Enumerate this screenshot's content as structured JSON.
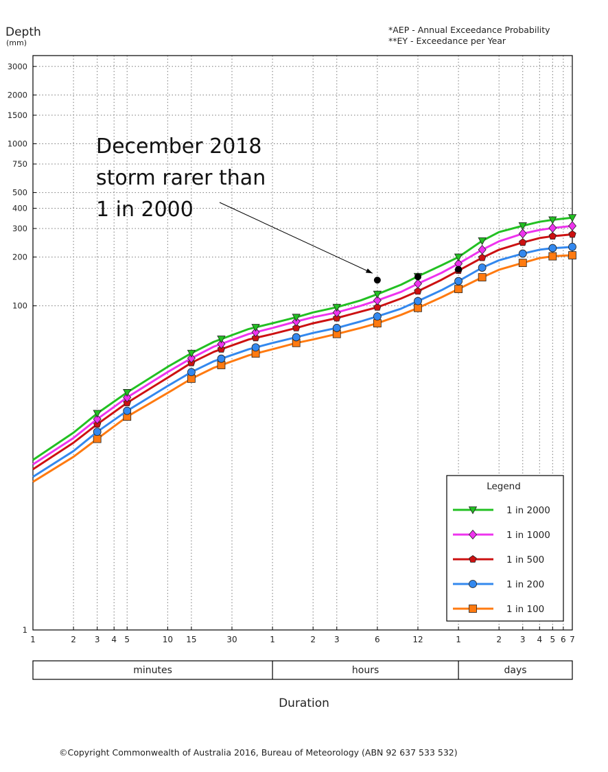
{
  "header": {
    "ylabel": "Depth",
    "yunit": "(mm)",
    "notes": [
      "*AEP - Annual Exceedance Probability",
      "**EY - Exceedance per Year"
    ]
  },
  "annotation": {
    "lines": [
      "December 2018",
      "storm rarer than",
      "1 in 2000"
    ]
  },
  "footer": {
    "xlabel": "Duration",
    "copyright": "©Copyright Commonwealth of Australia 2016, Bureau of Meteorology (ABN 92 637 533 532)"
  },
  "colors": {
    "1 in 2000": "#22c022",
    "1 in 1000": "#ee33ee",
    "1 in 500": "#cc1111",
    "1 in 200": "#3388ee",
    "1 in 100": "#ff7a10",
    "storm": "#000000"
  },
  "chart_data": {
    "type": "line",
    "title": "",
    "xlabel": "Duration",
    "ylabel": "Depth (mm)",
    "yscale": "log",
    "ylim": [
      1,
      3500
    ],
    "xscale": "log",
    "x_units": "minutes",
    "xlim": [
      1,
      10080
    ],
    "x_ticks": [
      {
        "x": 1,
        "label": "1"
      },
      {
        "x": 2,
        "label": "2"
      },
      {
        "x": 3,
        "label": "3"
      },
      {
        "x": 4,
        "label": "4"
      },
      {
        "x": 5,
        "label": "5"
      },
      {
        "x": 10,
        "label": "10"
      },
      {
        "x": 15,
        "label": "15"
      },
      {
        "x": 30,
        "label": "30"
      },
      {
        "x": 60,
        "label": "1"
      },
      {
        "x": 120,
        "label": "2"
      },
      {
        "x": 180,
        "label": "3"
      },
      {
        "x": 360,
        "label": "6"
      },
      {
        "x": 720,
        "label": "12"
      },
      {
        "x": 1440,
        "label": "1"
      },
      {
        "x": 2880,
        "label": "2"
      },
      {
        "x": 4320,
        "label": "3"
      },
      {
        "x": 5760,
        "label": "4"
      },
      {
        "x": 7200,
        "label": "5"
      },
      {
        "x": 8640,
        "label": "6"
      },
      {
        "x": 10080,
        "label": "7"
      }
    ],
    "y_ticks": [
      1,
      100,
      200,
      300,
      400,
      500,
      750,
      1000,
      1500,
      2000,
      3000
    ],
    "x_groups": [
      {
        "label": "minutes",
        "from": 1,
        "to": 60
      },
      {
        "label": "hours",
        "from": 60,
        "to": 1440
      },
      {
        "label": "days",
        "from": 1440,
        "to": 10080
      }
    ],
    "legend_title": "Legend",
    "legend_position": "bottom-right",
    "grid": true,
    "series": [
      {
        "name": "1 in 2000",
        "marker": "triangle-down",
        "x": [
          1,
          2,
          3,
          5,
          10,
          15,
          22,
          40,
          60,
          90,
          120,
          180,
          270,
          360,
          540,
          720,
          1080,
          1440,
          2160,
          2880,
          4320,
          5760,
          7200,
          8640,
          10080
        ],
        "values": [
          [
            11.2,
            null
          ],
          [
            16.5,
            null
          ],
          [
            21.7,
            null
          ],
          [
            29.2,
            null
          ],
          [
            42,
            null
          ],
          [
            51,
            null
          ],
          [
            60,
            null
          ],
          [
            72,
            null
          ],
          [
            78,
            null
          ],
          [
            85,
            null
          ],
          [
            91,
            null
          ],
          [
            98,
            null
          ],
          [
            108,
            null
          ],
          [
            118,
            null
          ],
          [
            135,
            null
          ],
          [
            152,
            null
          ],
          [
            178,
            null
          ],
          [
            200,
            null
          ],
          [
            252,
            null
          ],
          [
            285,
            null
          ],
          [
            312,
            null
          ],
          [
            330,
            null
          ],
          [
            339,
            null
          ],
          [
            345,
            null
          ],
          [
            350,
            null
          ]
        ]
      },
      {
        "name": "1 in 1000",
        "marker": "diamond",
        "x": [
          1,
          2,
          3,
          5,
          10,
          15,
          22,
          40,
          60,
          90,
          120,
          180,
          270,
          360,
          540,
          720,
          1080,
          1440,
          2160,
          2880,
          4320,
          5760,
          7200,
          8640,
          10080
        ],
        "values": [
          [
            10.5,
            null
          ],
          [
            15.3,
            null
          ],
          [
            20,
            null
          ],
          [
            27.2,
            null
          ],
          [
            39,
            null
          ],
          [
            47.5,
            null
          ],
          [
            56,
            null
          ],
          [
            67,
            null
          ],
          [
            73,
            null
          ],
          [
            80,
            null
          ],
          [
            85,
            null
          ],
          [
            91,
            null
          ],
          [
            100,
            null
          ],
          [
            108,
            null
          ],
          [
            122,
            null
          ],
          [
            137,
            null
          ],
          [
            160,
            null
          ],
          [
            182,
            null
          ],
          [
            222,
            null
          ],
          [
            250,
            null
          ],
          [
            279,
            null
          ],
          [
            294,
            null
          ],
          [
            302,
            null
          ],
          [
            307,
            null
          ],
          [
            311,
            null
          ]
        ]
      },
      {
        "name": "1 in 500",
        "marker": "pentagon",
        "x": [
          1,
          2,
          3,
          5,
          10,
          15,
          22,
          40,
          60,
          90,
          120,
          180,
          270,
          360,
          540,
          720,
          1080,
          1440,
          2160,
          2880,
          4320,
          5760,
          7200,
          8640,
          10080
        ],
        "values": [
          [
            9.8,
            null
          ],
          [
            14.3,
            null
          ],
          [
            18.6,
            null
          ],
          [
            25.2,
            null
          ],
          [
            36,
            null
          ],
          [
            44.5,
            null
          ],
          [
            52,
            null
          ],
          [
            62,
            null
          ],
          [
            67,
            null
          ],
          [
            73,
            null
          ],
          [
            78,
            null
          ],
          [
            84,
            null
          ],
          [
            92,
            null
          ],
          [
            98,
            null
          ],
          [
            111,
            null
          ],
          [
            123,
            null
          ],
          [
            145,
            null
          ],
          [
            165,
            null
          ],
          [
            198,
            null
          ],
          [
            222,
            null
          ],
          [
            246,
            null
          ],
          [
            262,
            null
          ],
          [
            269,
            null
          ],
          [
            273,
            null
          ],
          [
            276,
            null
          ]
        ]
      },
      {
        "name": "1 in 200",
        "marker": "circle",
        "x": [
          1,
          2,
          3,
          5,
          10,
          15,
          22,
          40,
          60,
          90,
          120,
          180,
          270,
          360,
          540,
          720,
          1080,
          1440,
          2160,
          2880,
          4320,
          5760,
          7200,
          8640,
          10080
        ],
        "values": [
          [
            8.8,
            null
          ],
          [
            12.7,
            null
          ],
          [
            16.7,
            null
          ],
          [
            22.5,
            null
          ],
          [
            32,
            null
          ],
          [
            39,
            null
          ],
          [
            45.5,
            null
          ],
          [
            54,
            null
          ],
          [
            59,
            null
          ],
          [
            64,
            null
          ],
          [
            68,
            null
          ],
          [
            73,
            null
          ],
          [
            80,
            null
          ],
          [
            86,
            null
          ],
          [
            96,
            null
          ],
          [
            107,
            null
          ],
          [
            125,
            null
          ],
          [
            142,
            null
          ],
          [
            172,
            null
          ],
          [
            191,
            null
          ],
          [
            210,
            null
          ],
          [
            222,
            null
          ],
          [
            227,
            null
          ],
          [
            229,
            null
          ],
          [
            231,
            null
          ]
        ]
      },
      {
        "name": "1 in 100",
        "marker": "square",
        "x": [
          1,
          2,
          3,
          5,
          10,
          15,
          22,
          40,
          60,
          90,
          120,
          180,
          270,
          360,
          540,
          720,
          1080,
          1440,
          2160,
          2880,
          4320,
          5760,
          7200,
          8640,
          10080
        ],
        "values": [
          [
            8.2,
            null
          ],
          [
            11.7,
            null
          ],
          [
            15.1,
            null
          ],
          [
            20.7,
            null
          ],
          [
            29,
            null
          ],
          [
            35.5,
            null
          ],
          [
            41.5,
            null
          ],
          [
            49.5,
            null
          ],
          [
            54,
            null
          ],
          [
            59,
            null
          ],
          [
            62,
            null
          ],
          [
            67,
            null
          ],
          [
            73,
            null
          ],
          [
            78,
            null
          ],
          [
            88,
            null
          ],
          [
            97,
            null
          ],
          [
            113,
            null
          ],
          [
            127,
            null
          ],
          [
            150,
            null
          ],
          [
            167,
            null
          ],
          [
            184,
            null
          ],
          [
            197,
            null
          ],
          [
            202,
            null
          ],
          [
            204,
            null
          ],
          [
            205,
            null
          ]
        ]
      }
    ],
    "marker_x": [
      3,
      5,
      15,
      25,
      45,
      90,
      180,
      360,
      720,
      1440,
      2160,
      4320,
      7200,
      10080
    ],
    "storm_points": [
      {
        "x": 360,
        "y": 144
      },
      {
        "x": 720,
        "y": 151
      },
      {
        "x": 1440,
        "y": 168
      }
    ]
  }
}
